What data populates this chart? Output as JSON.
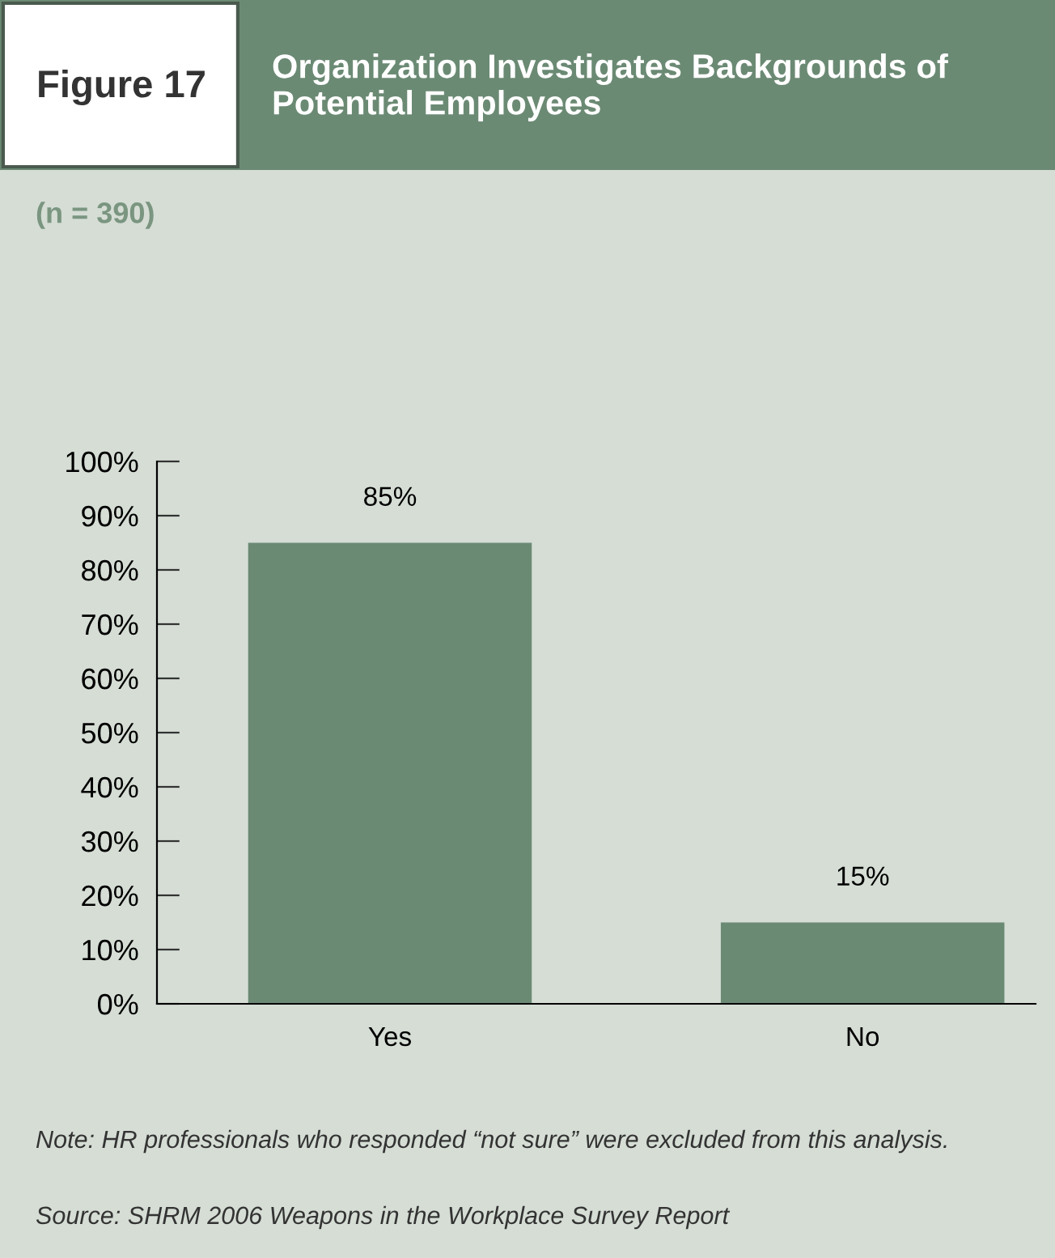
{
  "chart_data": {
    "type": "bar",
    "title": "Organization Investigates Backgrounds of Potential Employees",
    "subtitle": "(n = 390)",
    "annotations": [
      "Figure 17",
      "Note: HR professionals who responded “not sure” were excluded from this analysis.",
      "Source: SHRM 2006 Weapons in the Workplace Survey Report"
    ],
    "categories": [
      "Yes",
      "No"
    ],
    "values": [
      85,
      15
    ],
    "color": "#6b8a74",
    "value_labels": [
      "85%",
      "15%"
    ],
    "ylim": [
      0,
      100
    ],
    "yticks": [
      {
        "value": 0,
        "label": "0%"
      },
      {
        "value": 10,
        "label": "10%"
      },
      {
        "value": 20,
        "label": "20%"
      },
      {
        "value": 30,
        "label": "30%"
      },
      {
        "value": 40,
        "label": "40%"
      },
      {
        "value": 50,
        "label": "50%"
      },
      {
        "value": 60,
        "label": "60%"
      },
      {
        "value": 70,
        "label": "70%"
      },
      {
        "value": 80,
        "label": "80%"
      },
      {
        "value": 90,
        "label": "90%"
      },
      {
        "value": 100,
        "label": "100%"
      }
    ],
    "grid": false,
    "legend": false
  }
}
